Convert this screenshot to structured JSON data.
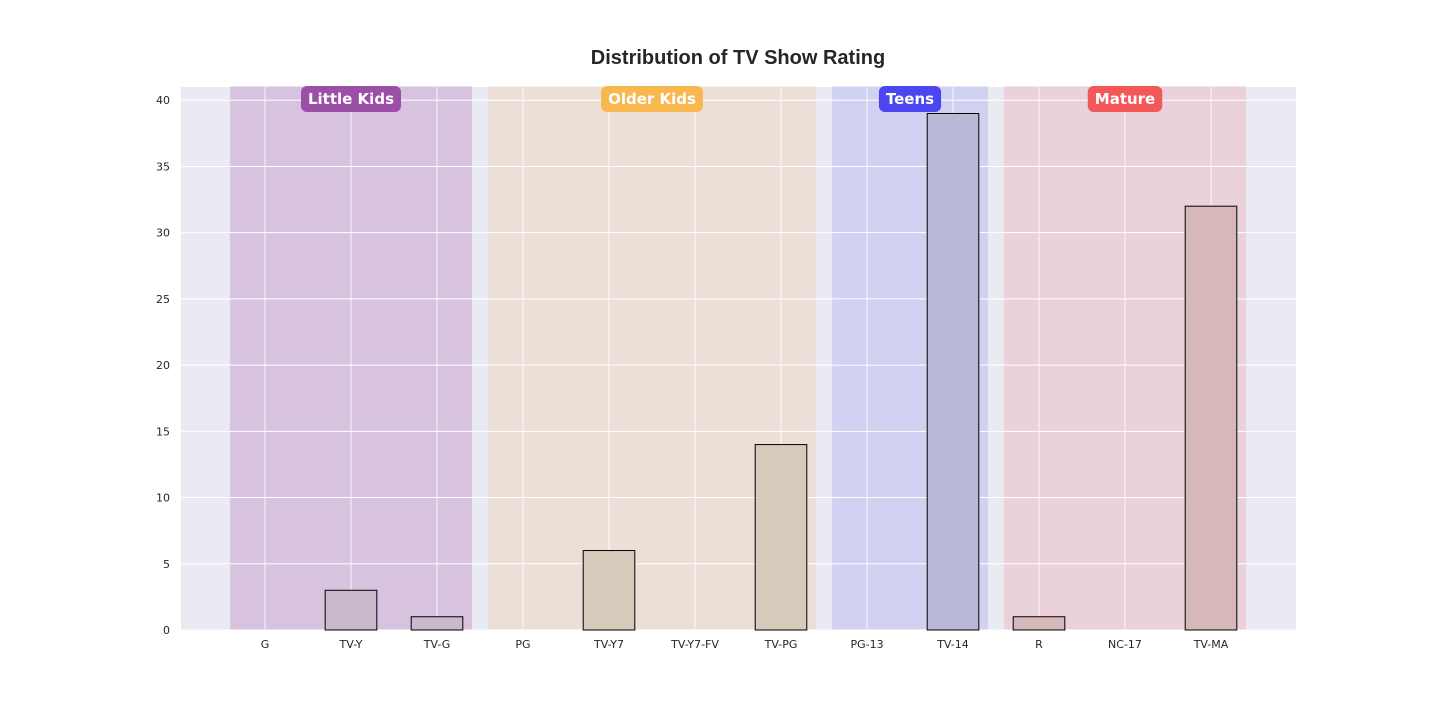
{
  "chart_data": {
    "type": "bar",
    "title": "Distribution of TV Show Rating",
    "xlabel": "",
    "ylabel": "",
    "categories": [
      "G",
      "TV-Y",
      "TV-G",
      "PG",
      "TV-Y7",
      "TV-Y7-FV",
      "TV-PG",
      "PG-13",
      "TV-14",
      "R",
      "NC-17",
      "TV-MA"
    ],
    "values": [
      0,
      3,
      1,
      0,
      6,
      0,
      14,
      0,
      39,
      1,
      0,
      32
    ],
    "ylim": [
      0,
      41
    ],
    "yticks": [
      0,
      5,
      10,
      15,
      20,
      25,
      30,
      35,
      40
    ],
    "grid": true,
    "groups": [
      {
        "label": "Little Kids",
        "start": "G",
        "end": "TV-G",
        "color": "#9B4FA6",
        "band_color": "#D7C3E0",
        "bar_color": "#C8BACC"
      },
      {
        "label": "Older Kids",
        "start": "PG",
        "end": "TV-PG",
        "color": "#F9B84F",
        "band_color": "#EBDFD7",
        "bar_color": "#D4CBBA"
      },
      {
        "label": "Teens",
        "start": "PG-13",
        "end": "TV-14",
        "color": "#4B46F0",
        "band_color": "#D1D1F1",
        "bar_color": "#B9B8D7"
      },
      {
        "label": "Mature",
        "start": "R",
        "end": "TV-MA",
        "color": "#F45757",
        "band_color": "#EBD1DA",
        "bar_color": "#D6B7BA"
      }
    ]
  }
}
